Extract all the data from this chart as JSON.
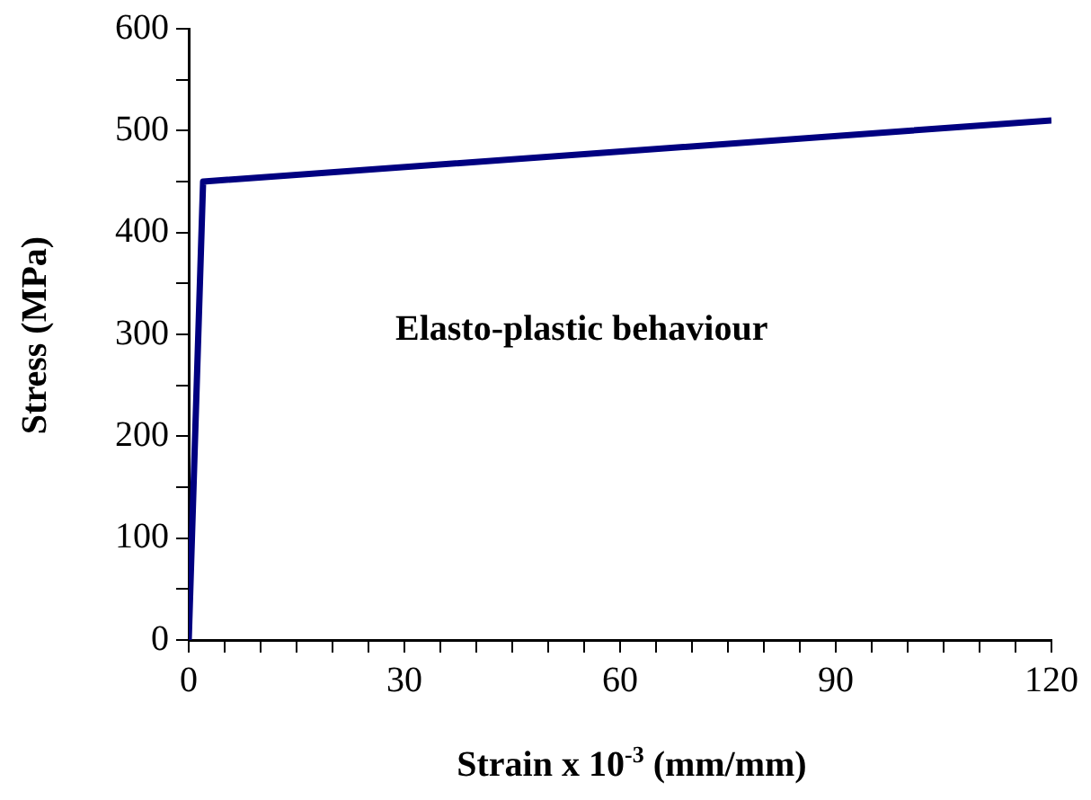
{
  "chart_data": {
    "type": "line",
    "xlabel": "Strain x 10$^{-3}$ (mm/mm)",
    "ylabel": "Stress (MPa)",
    "x": [
      0,
      2,
      120
    ],
    "series": [
      {
        "color": "#000080",
        "values": [
          0,
          450,
          510
        ]
      }
    ],
    "xlim": [
      0,
      120
    ],
    "xticks": [
      0,
      {
        "value": 5,
        "label": null
      },
      {
        "value": 10,
        "label": null
      },
      {
        "value": 15,
        "label": null
      },
      {
        "value": 20,
        "label": null
      },
      {
        "value": 25,
        "label": null
      },
      30,
      {
        "value": 35,
        "label": null
      },
      {
        "value": 40,
        "label": null
      },
      {
        "value": 45,
        "label": null
      },
      {
        "value": 50,
        "label": null
      },
      {
        "value": 55,
        "label": null
      },
      60,
      {
        "value": 65,
        "label": null
      },
      {
        "value": 70,
        "label": null
      },
      {
        "value": 75,
        "label": null
      },
      {
        "value": 80,
        "label": null
      },
      {
        "value": 85,
        "label": null
      },
      90,
      {
        "value": 95,
        "label": null
      },
      {
        "value": 100,
        "label": null
      },
      {
        "value": 105,
        "label": null
      },
      {
        "value": 110,
        "label": null
      },
      {
        "value": 115,
        "label": null
      },
      120
    ],
    "ylim": [
      0,
      600
    ],
    "yticks": [
      0,
      {
        "value": 50,
        "label": null
      },
      100,
      {
        "value": 150,
        "label": null
      },
      200,
      {
        "value": 250,
        "label": null
      },
      300,
      {
        "value": 350,
        "label": null
      },
      400,
      {
        "value": 450,
        "label": null
      },
      500,
      {
        "value": 550,
        "label": null
      },
      600
    ],
    "annotations": [
      "Elasto-plastic behaviour"
    ],
    "grid": false,
    "legend": false,
    "marker": "none",
    "line_style": "solid"
  }
}
